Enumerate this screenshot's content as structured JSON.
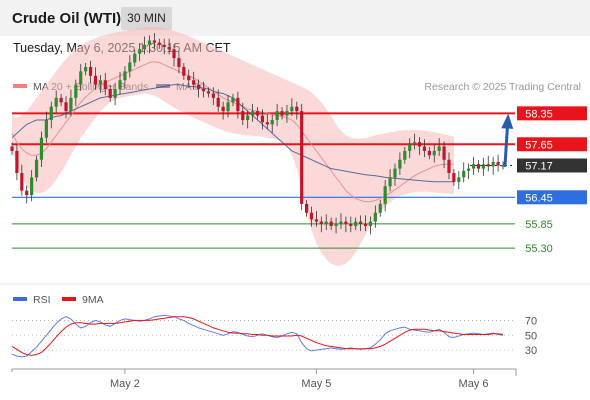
{
  "header": {
    "title": "Crude Oil (WTI)",
    "timeframe": "30 MIN",
    "datetime": "Tuesday, May 6, 2025 1:30:15 AM CET"
  },
  "chart_data": [
    {
      "type": "candlestick",
      "legend": [
        {
          "label": "MA 20 + Bollinger Bands",
          "color": "#f08080"
        },
        {
          "label": "MA 50",
          "color": "#2f4f8f"
        }
      ],
      "credit": "Research © 2025 Trading Central",
      "ylim": [
        54.85,
        59.15
      ],
      "levels": [
        {
          "label": "58.35",
          "value": 58.35,
          "color": "#e8141b",
          "style": "resistance"
        },
        {
          "label": "57.65",
          "value": 57.65,
          "color": "#e8141b",
          "style": "resistance"
        },
        {
          "label": "57.17",
          "value": 57.17,
          "color": "#333333",
          "style": "last"
        },
        {
          "label": "56.45",
          "value": 56.45,
          "color": "#2e6fe0",
          "style": "pivot"
        },
        {
          "label": "55.85",
          "value": 55.85,
          "color": "#2e8b2e",
          "style": "support"
        },
        {
          "label": "55.30",
          "value": 55.3,
          "color": "#2e8b2e",
          "style": "support"
        }
      ],
      "x_labels": [
        "May 2",
        "May 5",
        "May 6"
      ],
      "x_label_index": [
        23,
        62,
        94
      ],
      "candle_count": 101,
      "closes": [
        57.5,
        57.0,
        56.6,
        56.5,
        56.9,
        57.3,
        57.8,
        58.2,
        58.5,
        58.7,
        58.6,
        58.4,
        58.7,
        59.0,
        59.3,
        59.4,
        59.2,
        59.0,
        59.1,
        58.9,
        58.7,
        58.9,
        59.1,
        59.3,
        59.5,
        59.7,
        59.8,
        59.9,
        60.0,
        59.95,
        59.9,
        59.85,
        59.8,
        59.6,
        59.4,
        59.2,
        59.1,
        59.0,
        58.9,
        58.85,
        58.8,
        58.7,
        58.5,
        58.4,
        58.6,
        58.7,
        58.4,
        58.2,
        58.3,
        58.4,
        58.3,
        58.15,
        58.1,
        58.2,
        58.4,
        58.3,
        58.4,
        58.5,
        58.4,
        56.3,
        56.1,
        55.95,
        55.9,
        55.85,
        55.9,
        55.8,
        55.85,
        55.9,
        55.85,
        55.8,
        55.9,
        55.85,
        55.8,
        55.9,
        56.1,
        56.3,
        56.7,
        56.9,
        57.1,
        57.3,
        57.5,
        57.65,
        57.7,
        57.6,
        57.5,
        57.4,
        57.5,
        57.6,
        57.3,
        57.0,
        56.8,
        56.9,
        57.05,
        57.1,
        57.2,
        57.1,
        57.2,
        57.15,
        57.25,
        57.17,
        57.17
      ],
      "forecast_arrow": {
        "from": 57.17,
        "to": 58.3
      },
      "ma50": [
        57.8,
        57.9,
        58.0,
        58.1,
        58.15,
        58.2,
        58.2,
        58.2,
        58.25,
        58.28,
        58.3,
        58.35,
        58.4,
        58.45,
        58.5,
        58.55,
        58.6,
        58.65,
        58.7,
        58.72,
        58.74,
        58.76,
        58.78,
        58.8,
        58.82,
        58.84,
        58.86,
        58.88,
        58.9,
        58.92,
        58.94,
        58.96,
        58.98,
        59.0,
        59.0,
        58.98,
        58.96,
        58.95,
        58.94,
        58.92,
        58.9,
        58.85,
        58.82,
        58.8,
        58.75,
        58.7,
        58.6,
        58.5,
        58.4,
        58.3,
        58.2,
        58.1,
        58.0,
        57.9,
        57.8,
        57.7,
        57.6,
        57.5,
        57.45,
        57.4,
        57.35,
        57.3,
        57.25,
        57.2,
        57.15,
        57.1,
        57.08,
        57.06,
        57.04,
        57.02,
        57.0,
        56.98,
        56.96,
        56.95,
        56.94,
        56.92,
        56.9,
        56.89,
        56.88,
        56.87,
        56.86,
        56.85,
        56.84,
        56.83,
        56.82,
        56.81,
        56.8,
        56.8,
        56.8,
        56.8,
        56.8
      ],
      "ma20": [
        57.9,
        57.7,
        57.55,
        57.45,
        57.4,
        57.4,
        57.45,
        57.55,
        57.7,
        57.85,
        58.0,
        58.15,
        58.3,
        58.45,
        58.6,
        58.72,
        58.82,
        58.92,
        59.0,
        59.05,
        59.1,
        59.15,
        59.2,
        59.25,
        59.3,
        59.35,
        59.4,
        59.45,
        59.5,
        59.52,
        59.5,
        59.45,
        59.4,
        59.35,
        59.3,
        59.25,
        59.2,
        59.15,
        59.08,
        59.0,
        58.92,
        58.85,
        58.78,
        58.7,
        58.65,
        58.6,
        58.55,
        58.5,
        58.45,
        58.42,
        58.4,
        58.38,
        58.35,
        58.32,
        58.3,
        58.28,
        58.25,
        58.2,
        58.1,
        57.95,
        57.8,
        57.65,
        57.5,
        57.35,
        57.2,
        57.05,
        56.9,
        56.75,
        56.6,
        56.5,
        56.42,
        56.38,
        56.35,
        56.35,
        56.38,
        56.42,
        56.48,
        56.55,
        56.62,
        56.7,
        56.78,
        56.86,
        56.94,
        57.0,
        57.05,
        57.1,
        57.15,
        57.18,
        57.2,
        57.2,
        57.2
      ],
      "bb_upper": [
        58.3,
        58.25,
        58.3,
        58.4,
        58.55,
        58.7,
        58.85,
        59.0,
        59.15,
        59.3,
        59.45,
        59.58,
        59.7,
        59.8,
        59.88,
        59.95,
        60.0,
        60.05,
        60.1,
        60.12,
        60.15,
        60.18,
        60.2,
        60.22,
        60.24,
        60.26,
        60.28,
        60.3,
        60.31,
        60.31,
        60.3,
        60.28,
        60.25,
        60.22,
        60.18,
        60.14,
        60.1,
        60.05,
        60.0,
        59.95,
        59.9,
        59.85,
        59.8,
        59.75,
        59.7,
        59.65,
        59.6,
        59.55,
        59.5,
        59.45,
        59.4,
        59.35,
        59.3,
        59.25,
        59.2,
        59.15,
        59.1,
        59.05,
        59.0,
        58.95,
        58.9,
        58.82,
        58.72,
        58.6,
        58.45,
        58.28,
        58.1,
        57.95,
        57.85,
        57.8,
        57.78,
        57.78,
        57.8,
        57.82,
        57.85,
        57.88,
        57.9,
        57.92,
        57.94,
        57.96,
        57.97,
        57.98,
        57.98,
        57.97,
        57.96,
        57.94,
        57.92,
        57.9,
        57.88,
        57.85,
        57.82
      ],
      "bb_lower": [
        57.5,
        57.2,
        56.9,
        56.7,
        56.6,
        56.55,
        56.55,
        56.6,
        56.7,
        56.85,
        57.0,
        57.2,
        57.4,
        57.6,
        57.8,
        57.95,
        58.1,
        58.25,
        58.4,
        58.5,
        58.6,
        58.65,
        58.7,
        58.72,
        58.74,
        58.76,
        58.78,
        58.8,
        58.78,
        58.75,
        58.7,
        58.62,
        58.55,
        58.48,
        58.42,
        58.36,
        58.3,
        58.25,
        58.2,
        58.15,
        58.1,
        58.05,
        58.0,
        57.96,
        57.93,
        57.9,
        57.88,
        57.86,
        57.85,
        57.84,
        57.83,
        57.82,
        57.8,
        57.78,
        57.75,
        57.7,
        57.6,
        57.4,
        57.1,
        56.6,
        56.1,
        55.7,
        55.4,
        55.2,
        55.05,
        54.95,
        54.9,
        54.9,
        54.95,
        55.05,
        55.2,
        55.4,
        55.6,
        55.8,
        55.98,
        56.12,
        56.24,
        56.34,
        56.42,
        56.48,
        56.52,
        56.55,
        56.57,
        56.58,
        56.58,
        56.57,
        56.56,
        56.55,
        56.54,
        56.53,
        56.52
      ]
    },
    {
      "type": "line",
      "legend": [
        {
          "label": "RSI",
          "color": "#4169e1"
        },
        {
          "label": "9MA",
          "color": "#e8141b"
        }
      ],
      "ylim": [
        10,
        80
      ],
      "y_ticks": [
        70,
        50,
        30
      ],
      "rsi": [
        25,
        22,
        21,
        22,
        28,
        34,
        42,
        50,
        58,
        66,
        72,
        75,
        72,
        65,
        60,
        62,
        67,
        70,
        68,
        64,
        62,
        66,
        70,
        72,
        71,
        70,
        69,
        70,
        72,
        75,
        76,
        77,
        76,
        75,
        72,
        70,
        66,
        63,
        60,
        58,
        56,
        54,
        52,
        50,
        52,
        55,
        54,
        51,
        49,
        48,
        50,
        52,
        50,
        48,
        47,
        49,
        52,
        54,
        52,
        40,
        32,
        29,
        30,
        31,
        32,
        33,
        32,
        31,
        32,
        33,
        32,
        31,
        32,
        33,
        38,
        44,
        52,
        56,
        58,
        60,
        61,
        58,
        57,
        56,
        55,
        54,
        56,
        58,
        54,
        48,
        47,
        49,
        51,
        52,
        53,
        52,
        51,
        52,
        53,
        51,
        50
      ],
      "ma9": [
        35,
        31,
        27,
        24,
        23,
        24,
        27,
        33,
        40,
        48,
        55,
        61,
        65,
        67,
        67,
        66,
        65,
        65,
        66,
        66,
        66,
        66,
        67,
        68,
        69,
        70,
        70,
        70,
        70,
        71,
        72,
        73,
        74,
        75,
        75,
        75,
        74,
        72,
        69,
        66,
        63,
        60,
        58,
        56,
        54,
        53,
        53,
        52,
        52,
        51,
        51,
        50,
        50,
        49,
        49,
        49,
        49,
        49,
        50,
        49,
        46,
        43,
        40,
        38,
        36,
        35,
        34,
        33,
        32,
        32,
        32,
        32,
        32,
        32,
        33,
        35,
        38,
        42,
        46,
        50,
        54,
        57,
        58,
        58,
        58,
        57,
        56,
        56,
        55,
        54,
        53,
        52,
        51,
        51,
        51,
        51,
        51,
        51,
        52,
        52,
        51
      ]
    }
  ]
}
